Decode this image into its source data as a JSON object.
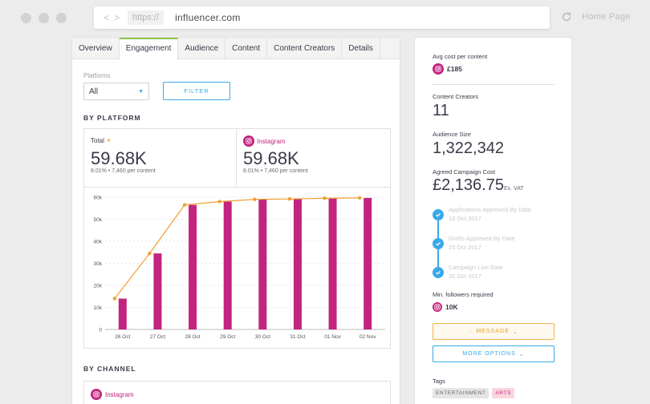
{
  "browser": {
    "protocol": "https://",
    "domain": "influencer.com",
    "home_label": "Home Page",
    "nav_back": "<",
    "nav_forward": ">"
  },
  "tabs": [
    "Overview",
    "Engagement",
    "Audience",
    "Content",
    "Content Creators",
    "Details"
  ],
  "active_tab": "Engagement",
  "filters": {
    "platforms_label": "Platforms",
    "platform_value": "All",
    "filter_button": "FILTER"
  },
  "by_platform": {
    "heading": "BY PLATFORM",
    "total": {
      "label": "Total",
      "value": "59.68K",
      "sub": "8.01% • 7,460 per content"
    },
    "instagram": {
      "label": "Instagram",
      "value": "59.68K",
      "sub": "8.01% • 7,460 per content"
    }
  },
  "by_channel": {
    "heading": "BY CHANNEL",
    "instagram_label": "Instagram"
  },
  "chart_data": {
    "type": "bar",
    "categories": [
      "26 Oct",
      "27 Oct",
      "28 Oct",
      "29 Oct",
      "30 Oct",
      "31 Oct",
      "01 Nov",
      "02 Nov"
    ],
    "series": [
      {
        "type": "bar",
        "values": [
          14000,
          34500,
          56500,
          58000,
          59000,
          59200,
          59500,
          59680
        ]
      },
      {
        "type": "line",
        "values": [
          14000,
          34500,
          56500,
          58000,
          59000,
          59200,
          59500,
          59680
        ]
      }
    ],
    "y_ticks": [
      "0",
      "10k",
      "20k",
      "30k",
      "40k",
      "50k",
      "60k"
    ],
    "ylim": [
      0,
      60000
    ],
    "colors": {
      "bar": "#c2247f",
      "line": "#f0a030"
    },
    "grid": true
  },
  "sidebar": {
    "avg_cost_label": "Avg cost per content",
    "avg_cost_value": "£185",
    "creators_label": "Content Creators",
    "creators_value": "11",
    "audience_label": "Audience Size",
    "audience_value": "1,322,342",
    "campaign_cost_label": "Agreed Campaign Cost",
    "campaign_cost_value": "£2,136.75",
    "campaign_cost_suffix": "Ex. VAT",
    "timeline": [
      {
        "title": "Applications Approved By Date",
        "date": "16 Oct 2017"
      },
      {
        "title": "Drafts Approved By Date",
        "date": "25 Oct 2017"
      },
      {
        "title": "Campaign Live Date",
        "date": "26 Oct 2017"
      }
    ],
    "min_followers_label": "Min. followers required",
    "min_followers_value": "10K",
    "message_button": "MESSAGE",
    "more_options_button": "MORE OPTIONS",
    "tags_label": "Tags",
    "tags": [
      "ENTERTAINMENT",
      "ARTS"
    ]
  }
}
